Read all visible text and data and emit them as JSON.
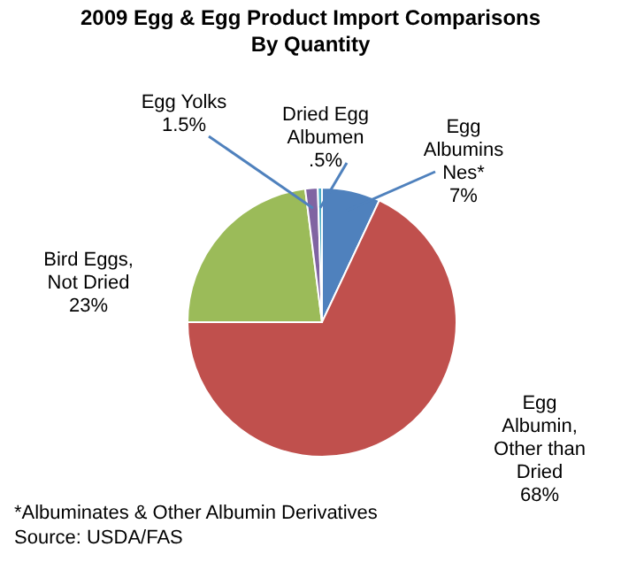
{
  "chart_data": {
    "type": "pie",
    "title": "2009 Egg & Egg Product Import Comparisons\nBy Quantity",
    "categories": [
      "Egg\nAlbumins\nNes*",
      "Egg\nAlbumin,\nOther than\nDried",
      "Bird Eggs,\nNot Dried",
      "Egg Yolks",
      "Dried Egg\nAlbumen"
    ],
    "values": [
      7,
      68,
      23,
      1.5,
      0.5
    ],
    "value_labels": [
      "7%",
      "68%",
      "23%",
      "1.5%",
      ".5%"
    ],
    "colors": [
      "#4f81bd",
      "#c0504d",
      "#9bbb59",
      "#8064a2",
      "#4bacc6"
    ],
    "annotations": [
      "*Albuminates & Other Albumin Derivatives",
      "Source: USDA/FAS"
    ]
  }
}
